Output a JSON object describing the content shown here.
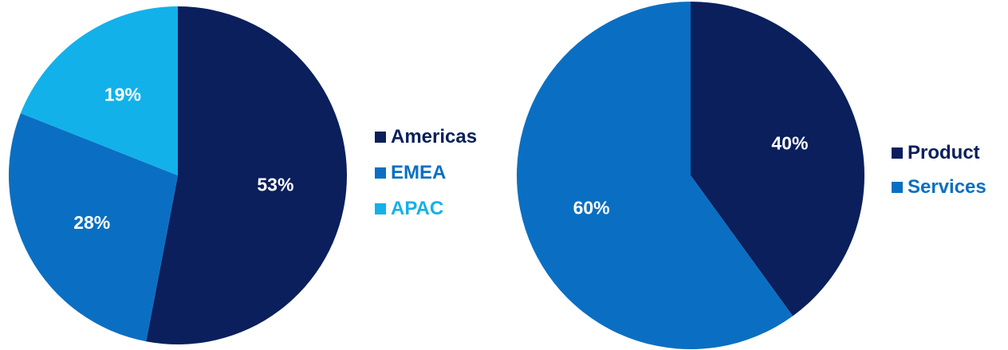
{
  "chart_data": [
    {
      "type": "pie",
      "categories": [
        "Americas",
        "EMEA",
        "APAC"
      ],
      "values": [
        53,
        28,
        19
      ],
      "labels": [
        "53%",
        "28%",
        "19%"
      ],
      "colors": [
        "#0a1f5c",
        "#0a6fc2",
        "#12b1ea"
      ],
      "legend_position": "right",
      "legend_text_colors": [
        "#0a1f5c",
        "#0a6fc2",
        "#12b1ea"
      ],
      "start": "top",
      "direction": "clockwise"
    },
    {
      "type": "pie",
      "categories": [
        "Product",
        "Services"
      ],
      "values": [
        40,
        60
      ],
      "labels": [
        "40%",
        "60%"
      ],
      "colors": [
        "#0a1f5c",
        "#0a6fc2"
      ],
      "legend_position": "right",
      "legend_text_colors": [
        "#0a1f5c",
        "#0a6fc2"
      ],
      "start": "top",
      "direction": "clockwise"
    }
  ]
}
